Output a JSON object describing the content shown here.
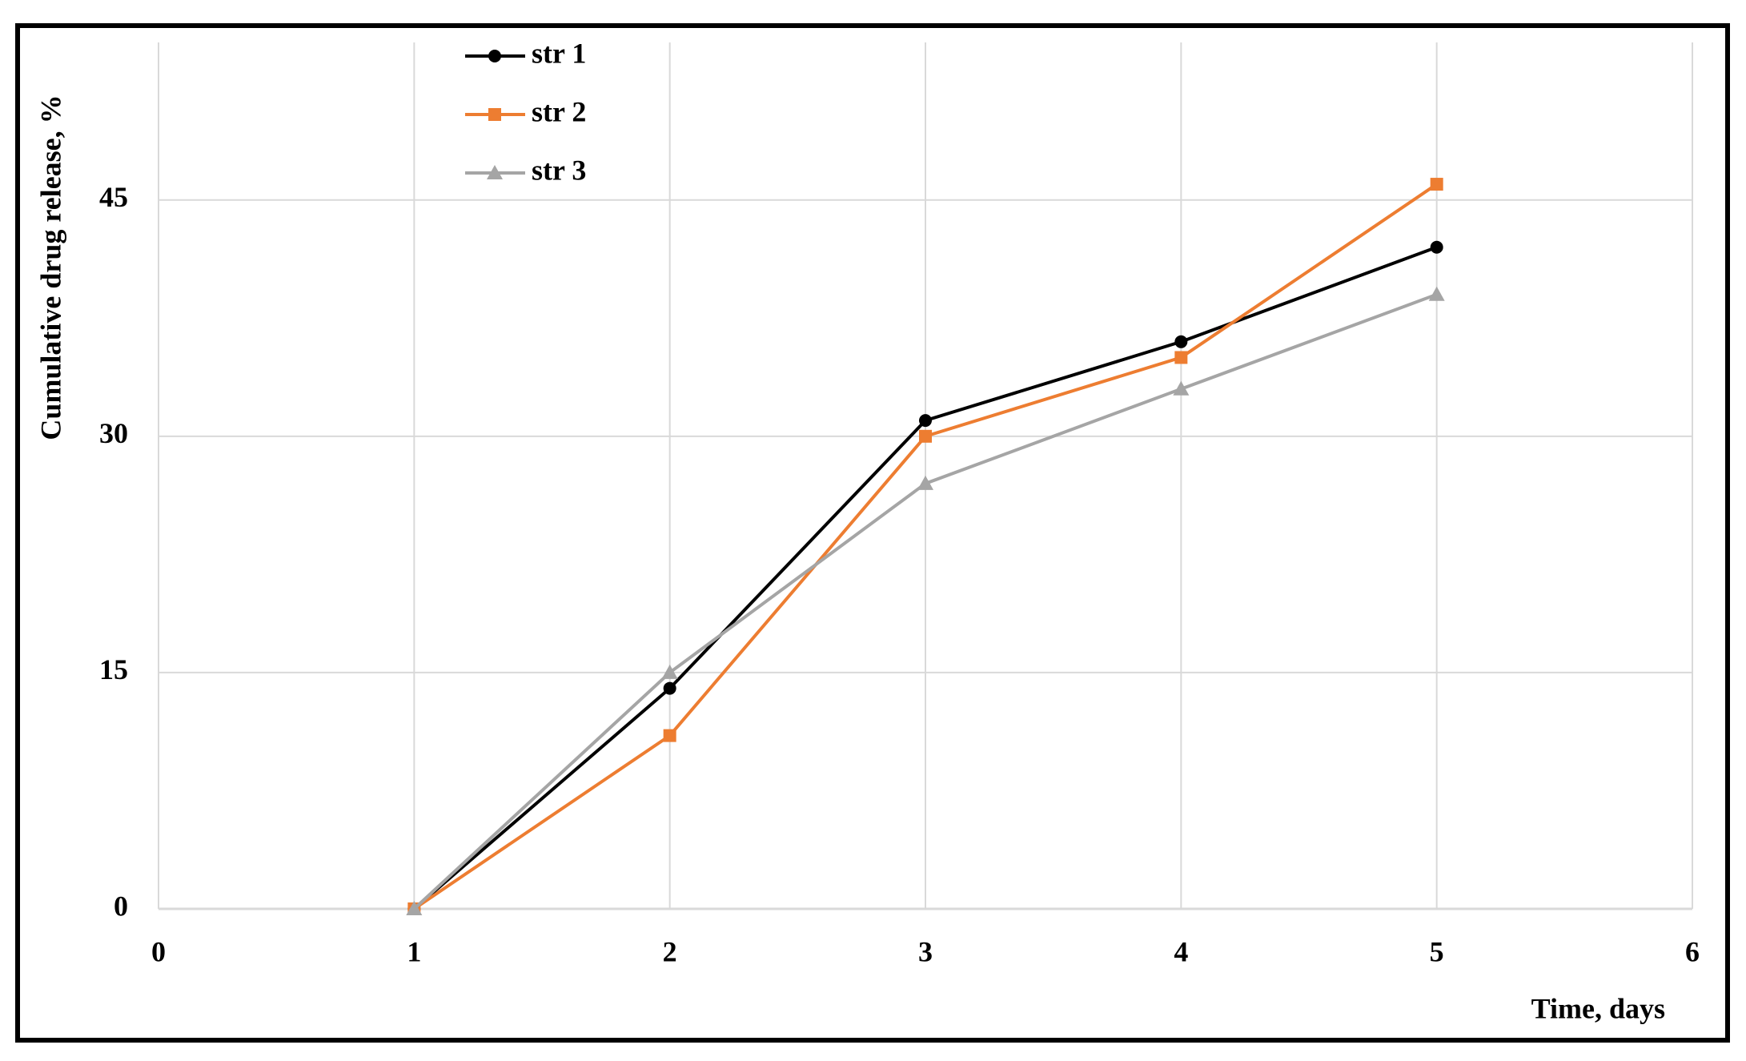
{
  "chart_data": {
    "type": "line",
    "xlabel": "Time, days",
    "ylabel": "Cumulative drug release, %",
    "x": [
      1,
      2,
      3,
      4,
      5
    ],
    "series": [
      {
        "name": "str 1",
        "color": "#000000",
        "marker": "circle",
        "values": [
          0,
          14,
          31,
          36,
          42
        ]
      },
      {
        "name": "str 2",
        "color": "#ed7d31",
        "marker": "square",
        "values": [
          0,
          11,
          30,
          35,
          46
        ]
      },
      {
        "name": "str 3",
        "color": "#a5a5a5",
        "marker": "triangle",
        "values": [
          0,
          15,
          27,
          33,
          39
        ]
      }
    ],
    "xlim": [
      0,
      6
    ],
    "xticks": [
      0,
      1,
      2,
      3,
      4,
      5,
      6
    ],
    "ylim": [
      0,
      55
    ],
    "yticks": [
      0,
      15,
      30,
      45
    ],
    "grid": true
  }
}
